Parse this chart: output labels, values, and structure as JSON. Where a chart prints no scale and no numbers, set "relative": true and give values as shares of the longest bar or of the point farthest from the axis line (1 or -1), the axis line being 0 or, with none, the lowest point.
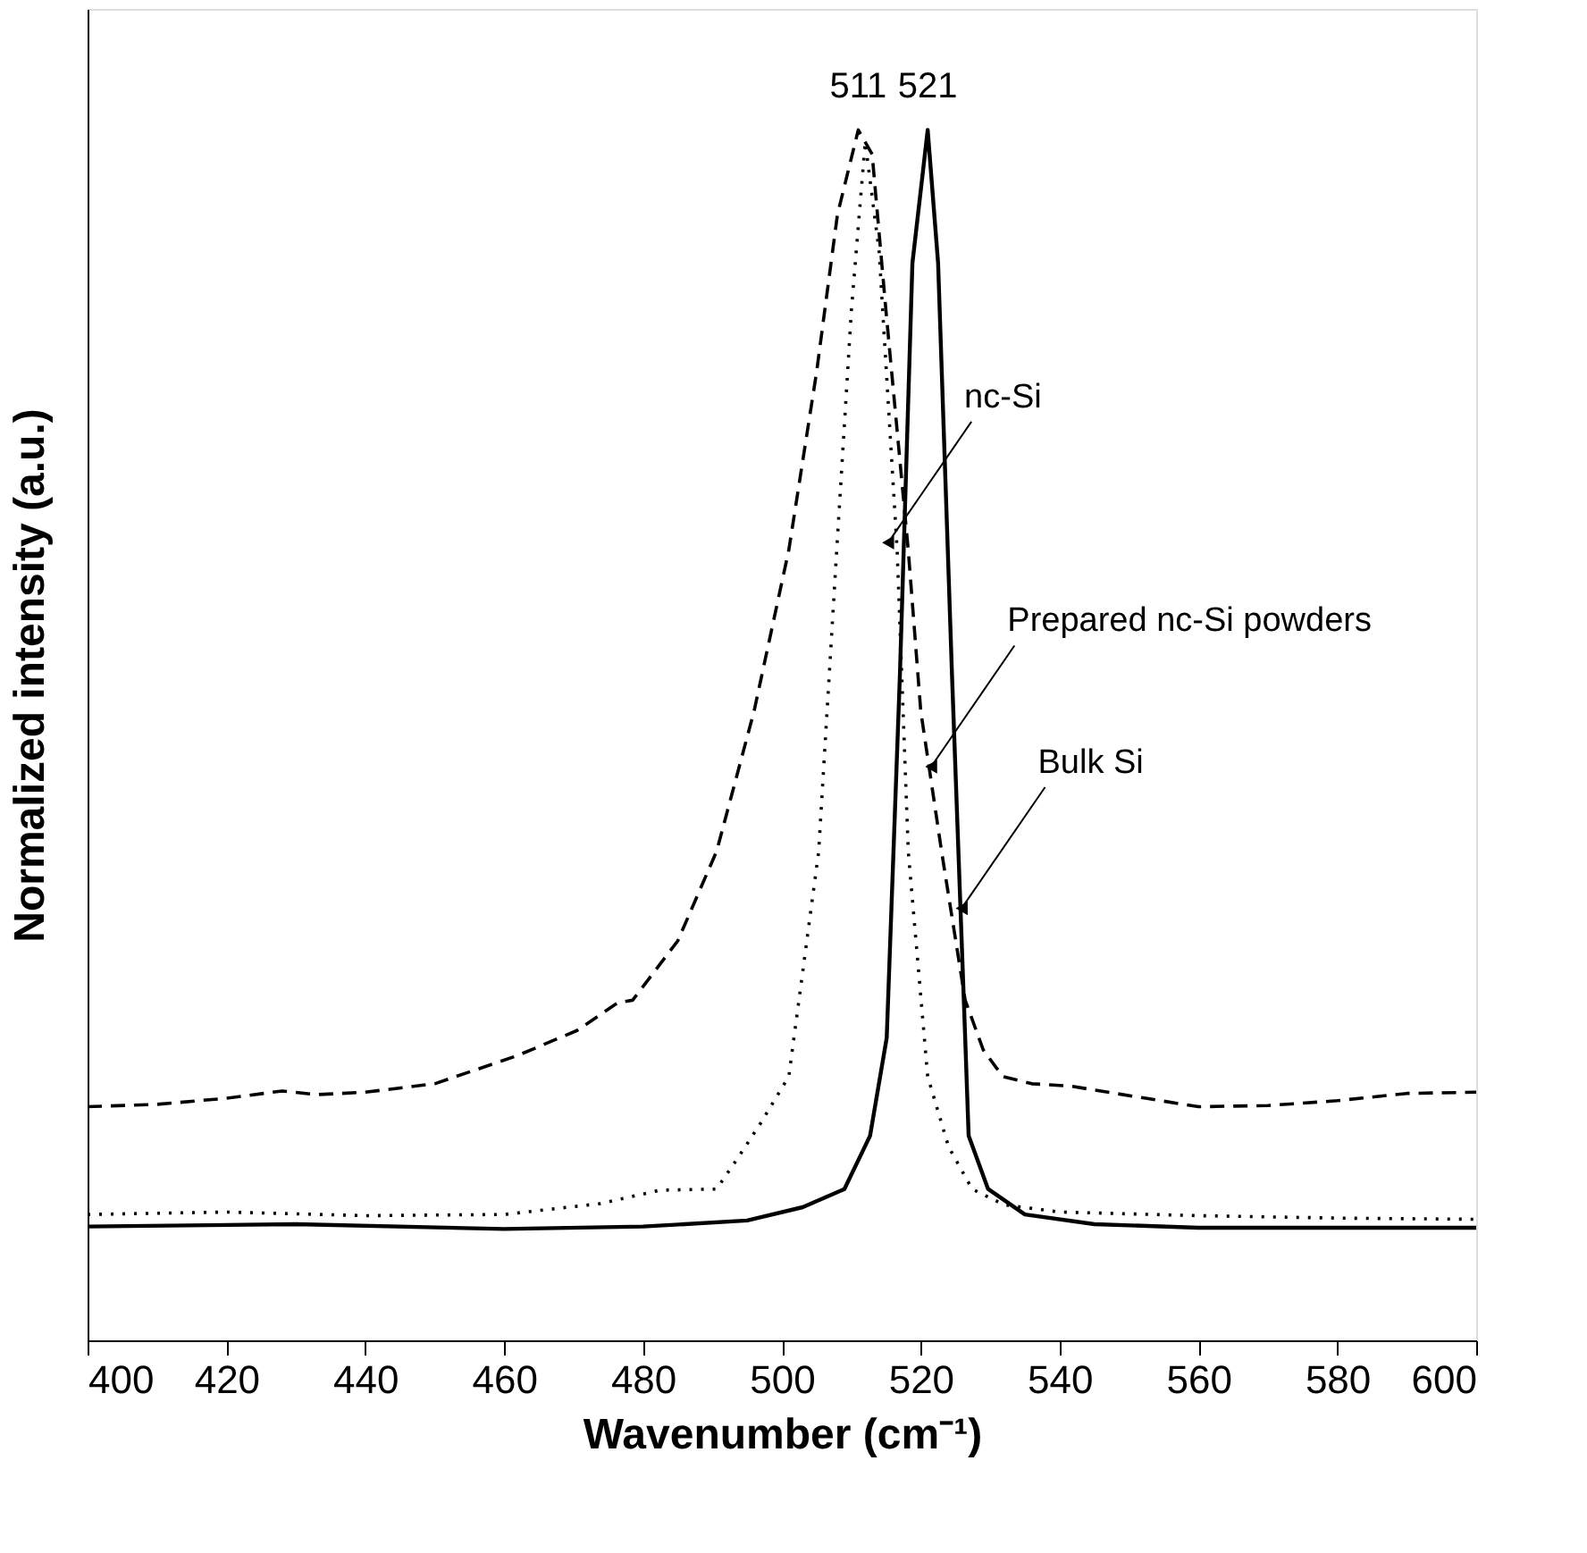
{
  "chart_data": {
    "type": "line",
    "relative": true,
    "xlabel": "Wavenumber (cm⁻¹)",
    "ylabel": "Normalized intensity (a.u.)",
    "xlim": [
      400,
      600
    ],
    "xticks": [
      400,
      420,
      440,
      460,
      480,
      500,
      520,
      540,
      560,
      580,
      600
    ],
    "grid": false,
    "marker": "none",
    "series": [
      {
        "color": "#000000",
        "line_style": "dashed",
        "x": [
          400,
          410,
          420,
          428,
          433,
          440,
          450,
          461.8,
          470.5,
          476.4,
          478.5,
          485,
          490.6,
          496,
          501,
          505,
          508,
          511,
          513,
          515,
          518.2,
          520,
          523,
          526.4,
          529,
          531.8,
          536,
          541.6,
          552.4,
          560,
          570,
          580,
          590,
          600
        ],
        "values": [
          0.193,
          0.195,
          0.2,
          0.206,
          0.203,
          0.205,
          0.212,
          0.235,
          0.256,
          0.279,
          0.281,
          0.33,
          0.404,
          0.52,
          0.653,
          0.8,
          0.93,
          1.0,
          0.98,
          0.85,
          0.653,
          0.52,
          0.404,
          0.281,
          0.24,
          0.218,
          0.212,
          0.21,
          0.2,
          0.193,
          0.194,
          0.198,
          0.204,
          0.205
        ]
      },
      {
        "color": "#000000",
        "line_style": "dotted",
        "x": [
          400,
          420,
          440,
          460,
          473.9,
          482.4,
          490.6,
          493.7,
          497,
          501,
          505.3,
          507.9,
          510,
          512,
          514,
          516.6,
          518.2,
          521,
          524,
          527.4,
          532,
          540,
          560,
          580,
          600
        ],
        "values": [
          0.104,
          0.106,
          0.103,
          0.104,
          0.113,
          0.124,
          0.125,
          0.151,
          0.18,
          0.218,
          0.404,
          0.653,
          0.85,
          0.99,
          0.9,
          0.653,
          0.404,
          0.218,
          0.16,
          0.125,
          0.112,
          0.106,
          0.103,
          0.101,
          0.1
        ]
      },
      {
        "color": "#000000",
        "line_style": "solid",
        "x": [
          400,
          430,
          460,
          480,
          495,
          503,
          509,
          512.7,
          515.1,
          517,
          518.8,
          521,
          522.5,
          524.5,
          526.4,
          526.9,
          529.7,
          535,
          545,
          560,
          600
        ],
        "values": [
          0.094,
          0.096,
          0.092,
          0.094,
          0.099,
          0.11,
          0.125,
          0.169,
          0.25,
          0.55,
          0.89,
          1.0,
          0.89,
          0.55,
          0.25,
          0.169,
          0.125,
          0.104,
          0.096,
          0.093,
          0.093
        ]
      }
    ],
    "annotations": [
      {
        "text": "511",
        "x": 511,
        "y": 1.0
      },
      {
        "text": "521",
        "x": 521,
        "y": 1.0
      },
      {
        "text": "nc-Si",
        "x": 515.3,
        "y": 0.659
      },
      {
        "text": "Prepared nc-Si powders",
        "x": 521.5,
        "y": 0.474
      },
      {
        "text": "Bulk Si",
        "x": 525.9,
        "y": 0.357
      }
    ]
  }
}
